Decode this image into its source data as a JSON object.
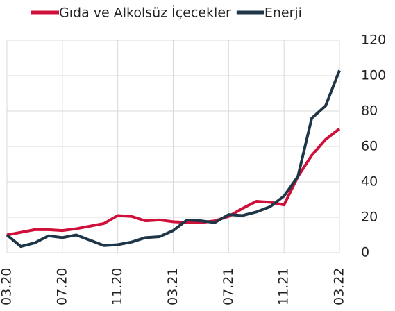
{
  "chart_data": {
    "type": "line",
    "categories": [
      "03.20",
      null,
      null,
      null,
      "07.20",
      null,
      null,
      null,
      "11.20",
      null,
      null,
      null,
      "03.21",
      null,
      null,
      null,
      "07.21",
      null,
      null,
      null,
      "11.21",
      null,
      null,
      null,
      "03.22"
    ],
    "series": [
      {
        "name": "Gıda ve Alkolsüz İçecekler",
        "color": "#d0103a",
        "values": [
          10,
          11.5,
          13,
          13,
          12.5,
          13.5,
          15,
          16.5,
          21,
          20.5,
          18,
          18.5,
          17.5,
          17,
          17,
          18,
          20.5,
          25,
          29,
          28.5,
          27,
          43,
          55,
          64,
          70
        ]
      },
      {
        "name": "Enerji",
        "color": "#1f3648",
        "values": [
          10,
          3.5,
          5.5,
          9.5,
          8.5,
          10,
          7,
          4,
          4.5,
          6,
          8.5,
          9,
          12.5,
          18.5,
          18,
          17,
          21.5,
          21,
          23,
          26,
          32,
          43,
          76,
          83,
          103
        ]
      }
    ],
    "ylim": [
      0,
      120
    ],
    "yticks": [
      0,
      20,
      40,
      60,
      80,
      100,
      120
    ],
    "grid": true
  }
}
